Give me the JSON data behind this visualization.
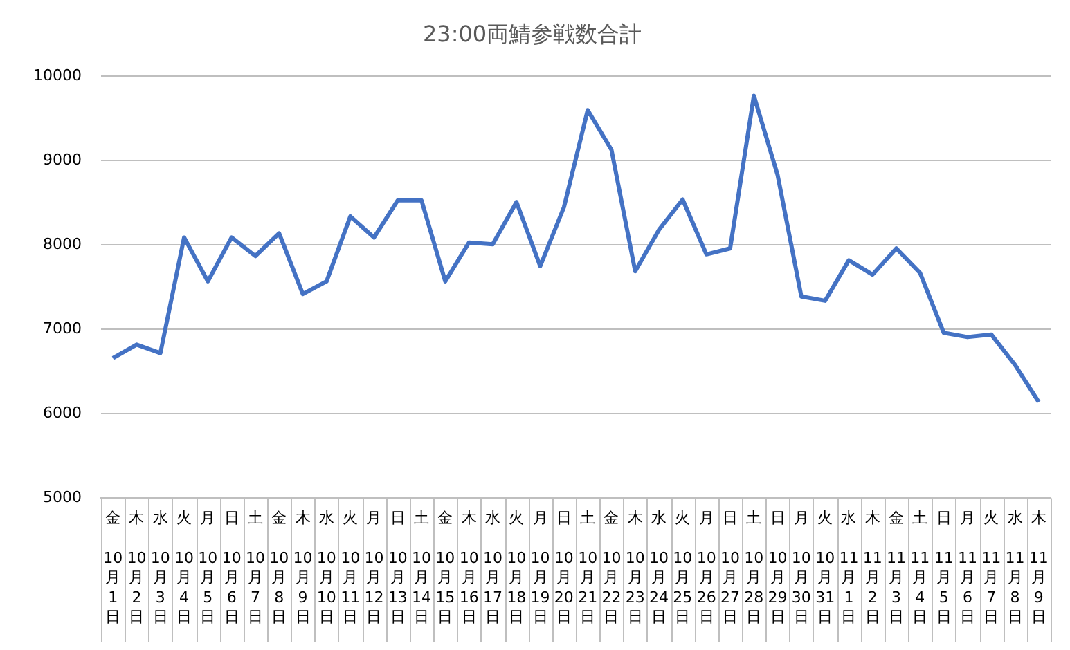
{
  "chart_data": {
    "type": "line",
    "title": "23:00両鯖参戦数合計",
    "categories": [
      "金 10月1日",
      "木 10月2日",
      "水 10月3日",
      "火 10月4日",
      "月 10月5日",
      "日 10月6日",
      "土 10月7日",
      "金 10月8日",
      "木 10月9日",
      "水 10月10日",
      "火 10月11日",
      "月 10月12日",
      "日 10月13日",
      "土 10月14日",
      "金 10月15日",
      "木 10月16日",
      "水 10月17日",
      "火 10月18日",
      "月 10月19日",
      "日 10月20日",
      "土 10月21日",
      "金 10月22日",
      "木 10月23日",
      "水 10月24日",
      "火 10月25日",
      "月 10月26日",
      "日 10月27日",
      "土 10月28日",
      "日 10月29日",
      "月 10月30日",
      "火 10月31日",
      "水 11月1日",
      "木 11月2日",
      "金 11月3日",
      "土 11月4日",
      "日 11月5日",
      "月 11月6日",
      "火 11月7日",
      "水 11月8日",
      "木 11月9日"
    ],
    "series": [
      {
        "color": "#4472c4",
        "values": [
          6660,
          6820,
          6720,
          8090,
          7570,
          8090,
          7870,
          8140,
          7420,
          7570,
          8340,
          8090,
          8530,
          8530,
          7570,
          8030,
          8010,
          8510,
          7750,
          8450,
          9600,
          9130,
          7690,
          8180,
          8540,
          7890,
          7960,
          9770,
          8830,
          7390,
          7340,
          7820,
          7650,
          7960,
          7670,
          6960,
          6910,
          6940,
          6580,
          6140
        ]
      }
    ],
    "ylim": [
      5000,
      10000
    ],
    "yticks": [
      5000,
      6000,
      7000,
      8000,
      9000,
      10000
    ],
    "grid": "y",
    "legend": false,
    "marker": "none",
    "line_style": "solid"
  }
}
